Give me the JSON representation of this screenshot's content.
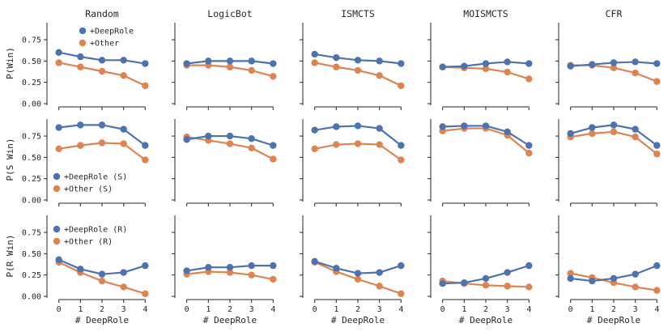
{
  "chart_data": {
    "type": "line",
    "layout": "grid 3 rows x 5 columns, shared axes",
    "columns": [
      "Random",
      "LogicBot",
      "ISMCTS",
      "MOISMCTS",
      "CFR"
    ],
    "rows": [
      {
        "ylabel": "P(Win)",
        "legend": [
          "+DeepRole",
          "+Other"
        ],
        "legend_column": 0,
        "legend_position": "top-right",
        "series_values": {
          "DeepRole": [
            [
              0.6,
              0.55,
              0.51,
              0.51,
              0.47
            ],
            [
              0.47,
              0.5,
              0.5,
              0.5,
              0.47
            ],
            [
              0.58,
              0.54,
              0.51,
              0.5,
              0.47
            ],
            [
              0.43,
              0.44,
              0.47,
              0.49,
              0.47
            ],
            [
              0.44,
              0.46,
              0.48,
              0.49,
              0.47
            ]
          ],
          "Other": [
            [
              0.48,
              0.43,
              0.38,
              0.33,
              0.21
            ],
            [
              0.45,
              0.45,
              0.43,
              0.39,
              0.32
            ],
            [
              0.48,
              0.43,
              0.39,
              0.33,
              0.21
            ],
            [
              0.43,
              0.42,
              0.41,
              0.37,
              0.29
            ],
            [
              0.45,
              0.45,
              0.42,
              0.36,
              0.26
            ]
          ]
        }
      },
      {
        "ylabel": "P(S Win)",
        "legend": [
          "+DeepRole (S)",
          "+Other (S)"
        ],
        "legend_column": 0,
        "legend_position": "bottom-left",
        "series_values": {
          "DeepRole": [
            [
              0.85,
              0.88,
              0.88,
              0.83,
              0.64
            ],
            [
              0.71,
              0.75,
              0.75,
              0.72,
              0.64
            ],
            [
              0.82,
              0.86,
              0.87,
              0.84,
              0.64
            ],
            [
              0.86,
              0.87,
              0.87,
              0.8,
              0.64
            ],
            [
              0.78,
              0.85,
              0.88,
              0.83,
              0.64
            ]
          ],
          "Other": [
            [
              0.6,
              0.64,
              0.67,
              0.66,
              0.47
            ],
            [
              0.74,
              0.7,
              0.66,
              0.61,
              0.48
            ],
            [
              0.6,
              0.65,
              0.66,
              0.65,
              0.47
            ],
            [
              0.81,
              0.84,
              0.84,
              0.76,
              0.55
            ],
            [
              0.74,
              0.78,
              0.8,
              0.74,
              0.54
            ]
          ]
        }
      },
      {
        "ylabel": "P(R Win)",
        "legend": [
          "+DeepRole (R)",
          "+Other (R)"
        ],
        "legend_column": 0,
        "legend_position": "top-left",
        "series_values": {
          "DeepRole": [
            [
              0.43,
              0.32,
              0.26,
              0.28,
              0.36
            ],
            [
              0.3,
              0.34,
              0.34,
              0.36,
              0.36
            ],
            [
              0.41,
              0.33,
              0.27,
              0.28,
              0.36
            ],
            [
              0.15,
              0.16,
              0.21,
              0.28,
              0.36
            ],
            [
              0.21,
              0.18,
              0.21,
              0.26,
              0.36
            ]
          ],
          "Other": [
            [
              0.4,
              0.28,
              0.18,
              0.11,
              0.03
            ],
            [
              0.26,
              0.29,
              0.28,
              0.25,
              0.2
            ],
            [
              0.4,
              0.29,
              0.2,
              0.12,
              0.03
            ],
            [
              0.18,
              0.15,
              0.13,
              0.12,
              0.11
            ],
            [
              0.27,
              0.22,
              0.16,
              0.11,
              0.07
            ]
          ]
        }
      }
    ],
    "x": [
      0,
      1,
      2,
      3,
      4
    ],
    "xticks": [
      "0",
      "1",
      "2",
      "3",
      "4"
    ],
    "yticks": [
      "0.00",
      "0.25",
      "0.50",
      "0.75"
    ],
    "ylim": [
      0.0,
      0.95
    ],
    "xlim": [
      -0.4,
      4.4
    ],
    "xlabel": "# DeepRole",
    "colors": {
      "DeepRole": "#4c72b0",
      "Other": "#dd8452"
    },
    "grid": false
  }
}
